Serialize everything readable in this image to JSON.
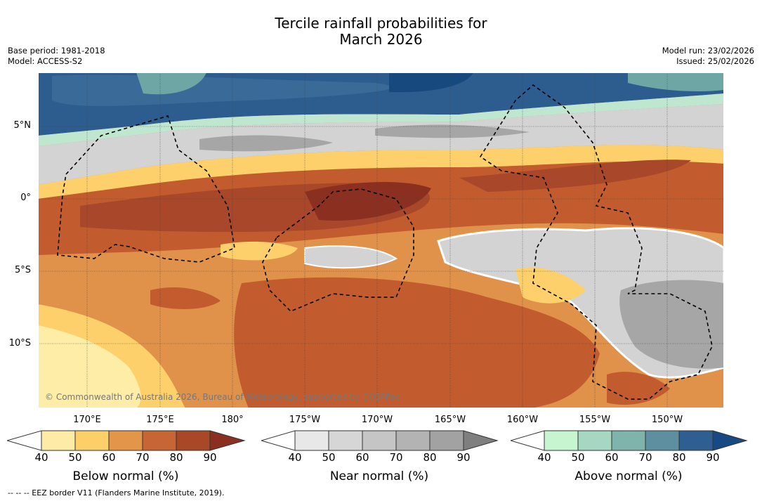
{
  "title": {
    "line1": "Tercile rainfall probabilities for",
    "line2": "March 2026"
  },
  "meta": {
    "base_period": "Base period: 1981-2018",
    "model": "Model: ACCESS-S2",
    "model_run": "Model run: 23/02/2026",
    "issued": "Issued: 25/02/2026"
  },
  "map": {
    "lat_labels": [
      "5°N",
      "0°",
      "5°S",
      "10°S"
    ],
    "lon_labels": [
      "170°E",
      "175°E",
      "180°",
      "175°W",
      "170°W",
      "165°W",
      "160°W",
      "155°W",
      "150°W"
    ],
    "copyright": "© Commonwealth of Australia 2026, Bureau of Meteorology, supported by COSPPac",
    "legend_note": "-- -- -- EEZ border V11 (Flanders Marine Institute, 2019)."
  },
  "colorbars": [
    {
      "title": "Below normal (%)",
      "ticks": [
        "40",
        "50",
        "60",
        "70",
        "80",
        "90"
      ],
      "colors": [
        "#ffffff",
        "#feeca6",
        "#fdcf68",
        "#e3954a",
        "#c86535",
        "#a84826",
        "#8b3020"
      ]
    },
    {
      "title": "Near normal (%)",
      "ticks": [
        "40",
        "50",
        "60",
        "70",
        "80",
        "90"
      ],
      "colors": [
        "#ffffff",
        "#e8e8e8",
        "#d6d6d6",
        "#c5c5c5",
        "#b3b3b3",
        "#a2a2a2",
        "#7f7f7f"
      ]
    },
    {
      "title": "Above normal (%)",
      "ticks": [
        "40",
        "50",
        "60",
        "70",
        "80",
        "90"
      ],
      "colors": [
        "#ffffff",
        "#c6f5cf",
        "#a5d7c2",
        "#7fb4ad",
        "#5d8fa0",
        "#2f5f92",
        "#174a84"
      ]
    }
  ],
  "field_colors": {
    "orange_dark": "#c25c2e",
    "orange_deep": "#a9472a",
    "orange_mid": "#e1924a",
    "orange_light": "#fdd06b",
    "yellow_pale": "#fdeda7",
    "grey_light": "#e3e3e3",
    "grey_mid": "#d3d3d3",
    "grey_dark": "#a6a6a6",
    "blue_dark": "#2d5d8f",
    "blue_deep": "#17497f",
    "teal": "#6ea6a5",
    "mint": "#bfe6cf"
  }
}
